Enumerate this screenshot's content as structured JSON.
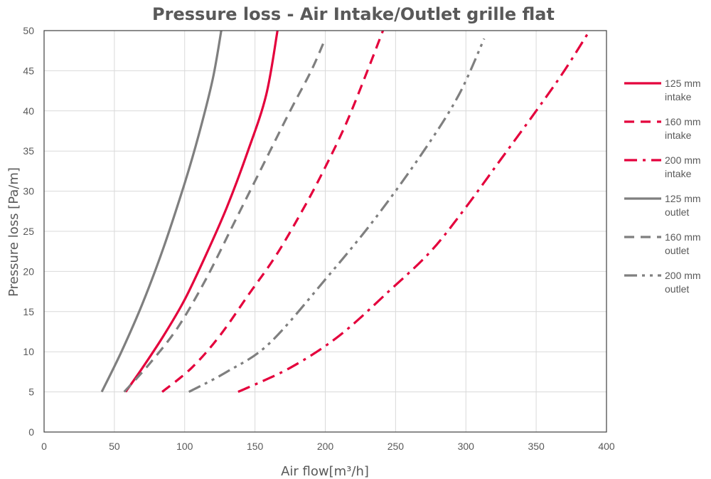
{
  "chart_data": {
    "type": "line",
    "title": "Pressure loss - Air Intake/Outlet grille flat",
    "xlabel": "Air flow[m³/h]",
    "ylabel": "Pressure loss [Pa/m]",
    "xlim": [
      0,
      400
    ],
    "ylim": [
      0,
      50
    ],
    "xticks": [
      0,
      50,
      100,
      150,
      200,
      250,
      300,
      350,
      400
    ],
    "yticks": [
      0,
      5,
      10,
      15,
      20,
      25,
      30,
      35,
      40,
      45,
      50
    ],
    "grid": true,
    "legend_position": "right",
    "colors": {
      "intake": "#e4003c",
      "outlet": "#7f7f7f"
    },
    "series": [
      {
        "name": "125 mm intake",
        "style": "solid",
        "color": "#e4003c",
        "points": [
          [
            58,
            5
          ],
          [
            70,
            8
          ],
          [
            85,
            12
          ],
          [
            100,
            16.5
          ],
          [
            115,
            22
          ],
          [
            130,
            28
          ],
          [
            145,
            35
          ],
          [
            158,
            42
          ],
          [
            166,
            50
          ]
        ]
      },
      {
        "name": "160 mm intake",
        "style": "dash",
        "color": "#e4003c",
        "points": [
          [
            84,
            5
          ],
          [
            105,
            8
          ],
          [
            125,
            12
          ],
          [
            145,
            17
          ],
          [
            165,
            22
          ],
          [
            185,
            28
          ],
          [
            200,
            33
          ],
          [
            215,
            38.5
          ],
          [
            230,
            45
          ],
          [
            241,
            50
          ]
        ]
      },
      {
        "name": "200 mm intake",
        "style": "dashdot",
        "color": "#e4003c",
        "points": [
          [
            138,
            5
          ],
          [
            175,
            8
          ],
          [
            210,
            12
          ],
          [
            245,
            17.5
          ],
          [
            275,
            22.5
          ],
          [
            300,
            28
          ],
          [
            325,
            34
          ],
          [
            350,
            40
          ],
          [
            370,
            45
          ],
          [
            388,
            50
          ]
        ]
      },
      {
        "name": "125 mm outlet",
        "style": "solid",
        "color": "#7f7f7f",
        "points": [
          [
            41,
            5
          ],
          [
            55,
            10
          ],
          [
            70,
            16
          ],
          [
            85,
            23
          ],
          [
            100,
            31
          ],
          [
            110,
            37
          ],
          [
            120,
            44
          ],
          [
            126,
            50
          ]
        ]
      },
      {
        "name": "160 mm outlet",
        "style": "dash",
        "color": "#7f7f7f",
        "points": [
          [
            57,
            5
          ],
          [
            75,
            8.5
          ],
          [
            95,
            13
          ],
          [
            115,
            19
          ],
          [
            135,
            26
          ],
          [
            155,
            33
          ],
          [
            175,
            40
          ],
          [
            190,
            45
          ],
          [
            200,
            49
          ]
        ]
      },
      {
        "name": "200 mm outlet",
        "style": "dashdotdot",
        "color": "#7f7f7f",
        "points": [
          [
            103,
            5
          ],
          [
            130,
            7.5
          ],
          [
            160,
            11
          ],
          [
            200,
            19
          ],
          [
            235,
            26.5
          ],
          [
            270,
            35
          ],
          [
            295,
            42
          ],
          [
            313,
            49
          ]
        ]
      }
    ],
    "legend": [
      {
        "line1": "125 mm",
        "line2": "intake"
      },
      {
        "line1": "160 mm",
        "line2": "intake"
      },
      {
        "line1": "200 mm",
        "line2": "intake"
      },
      {
        "line1": "125 mm",
        "line2": "outlet"
      },
      {
        "line1": "160 mm",
        "line2": "outlet"
      },
      {
        "line1": "200 mm",
        "line2": "outlet"
      }
    ]
  }
}
